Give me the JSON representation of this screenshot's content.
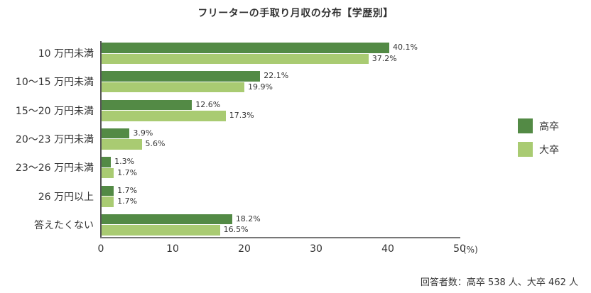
{
  "chart_data": {
    "type": "bar",
    "orientation": "horizontal",
    "title": "フリーターの手取り月収の分布【学歴別】",
    "categories": [
      "10 万円未満",
      "10〜15 万円未満",
      "15〜20 万円未満",
      "20〜23 万円未満",
      "23〜26 万円未満",
      "26 万円以上",
      "答えたくない"
    ],
    "series": [
      {
        "name": "高卒",
        "color": "#538a45",
        "values": [
          40.1,
          22.1,
          12.6,
          3.9,
          1.3,
          1.7,
          18.2
        ]
      },
      {
        "name": "大卒",
        "color": "#a9cb72",
        "values": [
          37.2,
          19.9,
          17.3,
          5.6,
          1.7,
          1.7,
          16.5
        ]
      }
    ],
    "value_labels": {
      "高卒": [
        "40.1%",
        "22.1%",
        "12.6%",
        "3.9%",
        "1.3%",
        "1.7%",
        "18.2%"
      ],
      "大卒": [
        "37.2%",
        "19.9%",
        "17.3%",
        "5.6%",
        "1.7%",
        "1.7%",
        "16.5%"
      ]
    },
    "xlabel": "(%)",
    "ylabel": "",
    "xlim": [
      0,
      50
    ],
    "xticks": [
      "0",
      "10",
      "20",
      "30",
      "40",
      "50"
    ],
    "grid": false,
    "legend_position": "right",
    "footnote": "回答者数：高卒 538 人、大卒 462 人"
  },
  "legend": [
    {
      "label": "高卒",
      "color": "#538a45"
    },
    {
      "label": "大卒",
      "color": "#a9cb72"
    }
  ]
}
